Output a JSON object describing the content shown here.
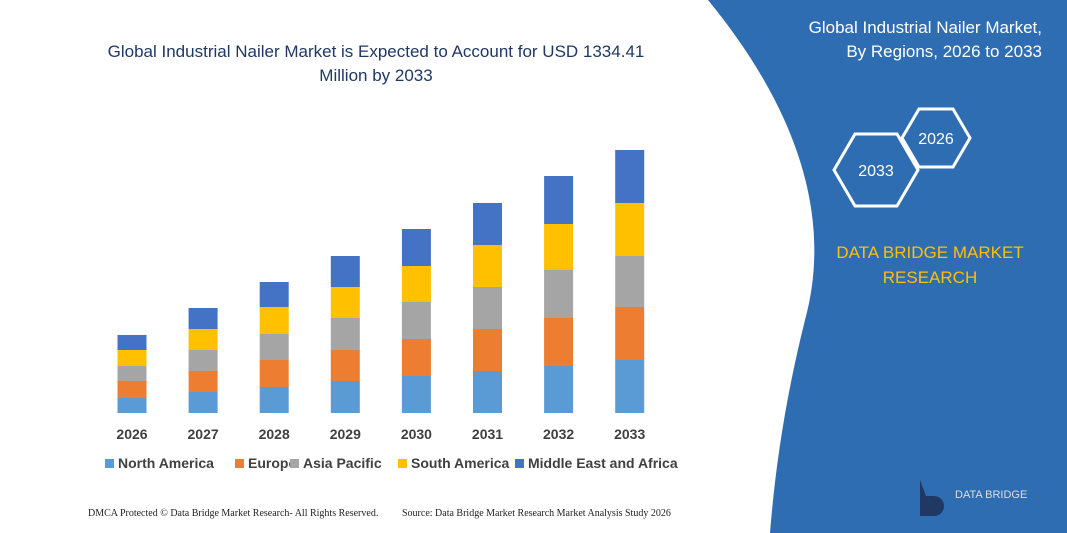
{
  "chart_data": {
    "type": "stacked_bar",
    "title": "Global Industrial Nailer Market is Expected to Account for USD 1334.41 Million by 2033",
    "categories": [
      "2026",
      "2027",
      "2028",
      "2029",
      "2030",
      "2031",
      "2032",
      "2033"
    ],
    "series": [
      {
        "name": "North America",
        "color": "#5b9bd5",
        "values": [
          15,
          21,
          26,
          32,
          37,
          42,
          47,
          53
        ]
      },
      {
        "name": "Europe",
        "color": "#ed7d31",
        "values": [
          17,
          21,
          27,
          31,
          37,
          42,
          48,
          53
        ]
      },
      {
        "name": "Asia Pacific",
        "color": "#a5a5a5",
        "values": [
          15,
          21,
          26,
          32,
          37,
          42,
          48,
          51
        ]
      },
      {
        "name": "South America",
        "color": "#ffc000",
        "values": [
          16,
          21,
          27,
          31,
          36,
          42,
          46,
          53
        ]
      },
      {
        "name": "Middle East and Africa",
        "color": "#4472c4",
        "values": [
          15,
          21,
          25,
          31,
          37,
          42,
          48,
          53
        ]
      }
    ],
    "ylim": [
      0,
      263
    ]
  },
  "panel": {
    "title": [
      "Global Industrial Nailer Market,",
      "By Regions, 2026 to 2033"
    ],
    "badges": [
      "2026",
      "2033"
    ],
    "brand": "DATA BRIDGE MARKET RESEARCH",
    "logo": "DATA BRIDGE"
  },
  "footer": {
    "left": "DMCA Protected © Data Bridge Market Research- All Rights Reserved.",
    "right": "Source: Data Bridge Market Research Market Analysis Study 2026"
  }
}
